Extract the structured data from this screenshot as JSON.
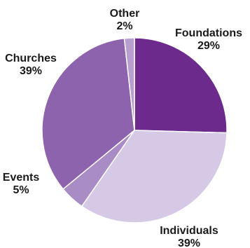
{
  "chart_data": {
    "type": "pie",
    "title": "",
    "slices": [
      {
        "label": "Foundations",
        "value": 29,
        "value_label": "29%",
        "color": "#6b2a8c"
      },
      {
        "label": "Individuals",
        "value": 39,
        "value_label": "39%",
        "color": "#d6c9e6"
      },
      {
        "label": "Events",
        "value": 5,
        "value_label": "5%",
        "color": "#a98bc6"
      },
      {
        "label": "Churches",
        "value": 39,
        "value_label": "39%",
        "color": "#8e63ad"
      },
      {
        "label": "Other",
        "value": 2,
        "value_label": "2%",
        "color": "#b89fd0"
      }
    ],
    "start_angle_deg": 0,
    "direction": "clockwise-from-top",
    "stroke_color": "#ffffff"
  }
}
